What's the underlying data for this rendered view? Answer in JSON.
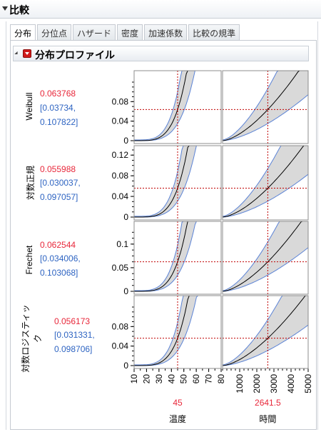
{
  "window": {
    "title": "比較"
  },
  "tabs": [
    {
      "label": "分布",
      "active": true
    },
    {
      "label": "分位点",
      "active": false
    },
    {
      "label": "ハザード",
      "active": false
    },
    {
      "label": "密度",
      "active": false
    },
    {
      "label": "加速係数",
      "active": false
    },
    {
      "label": "比較の規準",
      "active": false
    }
  ],
  "section": {
    "title": "分布プロファイル"
  },
  "rows": [
    {
      "label": "Weibull",
      "estimate": "0.063768",
      "ci_lines": [
        "[0.03734,",
        "0.107822]"
      ]
    },
    {
      "label": "対数正規",
      "estimate": "0.055988",
      "ci_lines": [
        "[0.030037,",
        "0.097057]"
      ]
    },
    {
      "label": "Frechet",
      "estimate": "0.062544",
      "ci_lines": [
        "[0.034006,",
        "0.103068]"
      ]
    },
    {
      "label": "対数ロジスティッ ク",
      "label_lines": [
        "対数ロジスティッ",
        "ク"
      ],
      "estimate": "0.056173",
      "ci_lines": [
        "[0.031331,",
        "0.098706]"
      ]
    }
  ],
  "colors": {
    "estimate": "#e8273a",
    "ci": "#2e64c2",
    "band_fill": "#d9d9d9",
    "band_edge": "#5b83d6",
    "curve": "#000000",
    "ref_line": "#c00000"
  },
  "chart_data": {
    "type": "line",
    "panels_rows": 4,
    "panels_cols": 2,
    "factors": [
      {
        "name": "温度",
        "current": "45",
        "current_value": 45,
        "range": [
          10,
          80
        ],
        "ticks": [
          "10",
          "20",
          "30",
          "40",
          "50",
          "60",
          "70",
          "80"
        ]
      },
      {
        "name": "時間",
        "current": "2641.5",
        "current_value": 2641.5,
        "range": [
          0,
          5000
        ],
        "ticks": [
          "1000",
          "2000",
          "3000",
          "4000",
          "5000"
        ]
      }
    ],
    "y_axes": [
      {
        "range": [
          0,
          0.12
        ],
        "ticks": [
          "0",
          "0.04",
          "0.08"
        ],
        "tick_values": [
          0,
          0.04,
          0.08
        ]
      },
      {
        "range": [
          0,
          0.13
        ],
        "ticks": [
          "0",
          "0.04",
          "0.08",
          "0.12"
        ],
        "tick_values": [
          0,
          0.04,
          0.08,
          0.12
        ]
      },
      {
        "range": [
          0,
          0.13
        ],
        "ticks": [
          "0",
          "0.05",
          "0.1"
        ],
        "tick_values": [
          0,
          0.05,
          0.1
        ]
      },
      {
        "range": [
          0,
          0.12
        ],
        "ticks": [
          "0",
          "0.04",
          "0.08"
        ],
        "tick_values": [
          0,
          0.04,
          0.08
        ]
      }
    ],
    "current_values": [
      0.063768,
      0.055988,
      0.062544,
      0.056173
    ],
    "grid": true
  }
}
